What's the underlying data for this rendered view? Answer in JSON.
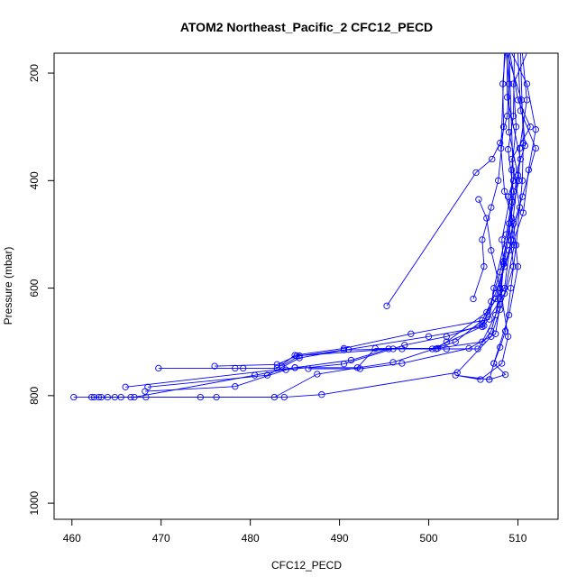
{
  "chart_data": {
    "type": "line",
    "title": "ATOM2 Northeast_Pacific_2 CFC12_PECD",
    "xlabel": "CFC12_PECD",
    "ylabel": "Pressure (mbar)",
    "xlim": [
      458,
      514.5
    ],
    "ylim": [
      1030,
      163
    ],
    "y_inverted": true,
    "x_ticks": [
      460,
      470,
      480,
      490,
      500,
      510
    ],
    "y_ticks": [
      200,
      400,
      600,
      800,
      1000
    ],
    "grid": false,
    "marker": "open-circle",
    "color": "#0000ff",
    "profiles": [
      [
        [
          460.2,
          803
        ],
        [
          462.5,
          803
        ],
        [
          464.8,
          803
        ],
        [
          466.6,
          803
        ],
        [
          468.3,
          803
        ],
        [
          476.2,
          803
        ],
        [
          483.8,
          803
        ],
        [
          488.0,
          798
        ],
        [
          503.2,
          757
        ],
        [
          507.0,
          690
        ],
        [
          508.0,
          640
        ],
        [
          509.5,
          560
        ],
        [
          509.0,
          480
        ],
        [
          510.1,
          400
        ],
        [
          510.2,
          340
        ],
        [
          511.0,
          250
        ],
        [
          510.5,
          163
        ]
      ],
      [
        [
          462.2,
          803
        ],
        [
          463.3,
          803
        ],
        [
          465.5,
          803
        ],
        [
          474.4,
          803
        ],
        [
          482.7,
          803
        ],
        [
          487.5,
          760
        ],
        [
          496.0,
          738
        ],
        [
          503.0,
          700
        ],
        [
          506.0,
          660
        ],
        [
          507.5,
          610
        ],
        [
          509.0,
          530
        ],
        [
          510.2,
          450
        ],
        [
          509.3,
          360
        ],
        [
          511.4,
          300
        ],
        [
          510.0,
          250
        ],
        [
          509.1,
          163
        ]
      ],
      [
        [
          463.0,
          803
        ],
        [
          464.0,
          803
        ],
        [
          467.0,
          803
        ],
        [
          480.5,
          762
        ],
        [
          485.0,
          748
        ],
        [
          492.0,
          748
        ],
        [
          494.0,
          712
        ],
        [
          501.0,
          712
        ],
        [
          506.0,
          700
        ],
        [
          507.5,
          650
        ],
        [
          508.0,
          600
        ],
        [
          508.8,
          520
        ],
        [
          510.5,
          430
        ],
        [
          512.0,
          340
        ],
        [
          510.3,
          270
        ],
        [
          510.0,
          163
        ]
      ],
      [
        [
          468.2,
          792
        ],
        [
          478.3,
          783
        ],
        [
          484.0,
          752
        ],
        [
          490.5,
          741
        ],
        [
          497.3,
          706
        ],
        [
          502.0,
          690
        ],
        [
          506.0,
          668
        ],
        [
          507.5,
          620
        ],
        [
          508.5,
          560
        ],
        [
          510.6,
          460
        ],
        [
          511.2,
          380
        ],
        [
          512.0,
          305
        ],
        [
          511.0,
          220
        ],
        [
          509.3,
          163
        ]
      ],
      [
        [
          466.0,
          784
        ],
        [
          485.0,
          748
        ],
        [
          491.3,
          734
        ],
        [
          495.5,
          713
        ],
        [
          500.4,
          713
        ],
        [
          506.2,
          670
        ],
        [
          508.5,
          610
        ],
        [
          509.6,
          520
        ],
        [
          508.9,
          430
        ],
        [
          510.8,
          335
        ],
        [
          510.4,
          250
        ],
        [
          508.8,
          163
        ]
      ],
      [
        [
          469.7,
          749
        ],
        [
          478.3,
          749
        ],
        [
          479.2,
          749
        ],
        [
          483.0,
          749
        ],
        [
          485.0,
          725
        ],
        [
          490.5,
          712
        ],
        [
          498.0,
          685
        ],
        [
          506.8,
          658
        ],
        [
          507.3,
          600
        ],
        [
          508.7,
          500
        ],
        [
          509.5,
          420
        ],
        [
          508.9,
          342
        ],
        [
          509.5,
          280
        ],
        [
          509.6,
          163
        ]
      ],
      [
        [
          468.5,
          784
        ],
        [
          481.9,
          762
        ],
        [
          485.5,
          730
        ],
        [
          491.0,
          714
        ],
        [
          500.0,
          690
        ],
        [
          506.0,
          672
        ],
        [
          507.0,
          625
        ],
        [
          508.0,
          570
        ],
        [
          509.3,
          470
        ],
        [
          509.3,
          380
        ],
        [
          509.8,
          300
        ],
        [
          509.5,
          220
        ],
        [
          511.0,
          163
        ]
      ],
      [
        [
          476.0,
          745
        ],
        [
          483.0,
          742
        ],
        [
          485.2,
          726
        ],
        [
          496.0,
          713
        ],
        [
          500.8,
          713
        ],
        [
          502.0,
          700
        ],
        [
          506.5,
          645
        ],
        [
          508.5,
          600
        ],
        [
          509.2,
          510
        ],
        [
          510.0,
          390
        ],
        [
          509.0,
          310
        ],
        [
          509.0,
          163
        ]
      ],
      [
        [
          483.5,
          745
        ],
        [
          485.5,
          726
        ],
        [
          490.5,
          715
        ],
        [
          497.0,
          713
        ],
        [
          502.0,
          713
        ],
        [
          505.5,
          713
        ],
        [
          507.0,
          680
        ],
        [
          508.0,
          620
        ],
        [
          508.4,
          550
        ],
        [
          509.4,
          440
        ],
        [
          510.3,
          360
        ],
        [
          508.8,
          245
        ],
        [
          508.8,
          163
        ]
      ],
      [
        [
          495.3,
          633
        ],
        [
          505.3,
          385
        ],
        [
          507.1,
          360
        ],
        [
          508.0,
          330
        ],
        [
          508.8,
          280
        ],
        [
          509.0,
          220
        ],
        [
          508.7,
          163
        ]
      ],
      [
        [
          505.6,
          435
        ],
        [
          506.5,
          470
        ],
        [
          507.0,
          530
        ],
        [
          508.0,
          600
        ],
        [
          508.9,
          690
        ],
        [
          508.2,
          740
        ],
        [
          505.8,
          770
        ],
        [
          503.0,
          762
        ],
        [
          506.8,
          770
        ],
        [
          508.6,
          761
        ],
        [
          507.3,
          740
        ],
        [
          509.0,
          650
        ],
        [
          510.0,
          560
        ],
        [
          509.5,
          480
        ],
        [
          508.5,
          420
        ],
        [
          508.1,
          340
        ],
        [
          508.5,
          163
        ]
      ],
      [
        [
          486.5,
          750
        ],
        [
          492.3,
          750
        ],
        [
          497.0,
          740
        ],
        [
          504.5,
          712
        ],
        [
          507.5,
          685
        ],
        [
          508.0,
          630
        ],
        [
          508.4,
          555
        ],
        [
          508.2,
          510
        ],
        [
          509.5,
          400
        ],
        [
          509.0,
          163
        ]
      ],
      [
        [
          505.0,
          620
        ],
        [
          506.2,
          560
        ],
        [
          506.0,
          510
        ],
        [
          507.0,
          450
        ],
        [
          507.8,
          400
        ],
        [
          508.4,
          300
        ],
        [
          508.3,
          220
        ],
        [
          508.6,
          163
        ]
      ],
      [
        [
          506.8,
          770
        ],
        [
          507.3,
          740
        ],
        [
          508.0,
          710
        ],
        [
          508.6,
          680
        ],
        [
          509.2,
          600
        ],
        [
          509.8,
          520
        ],
        [
          510.5,
          400
        ],
        [
          510.6,
          330
        ],
        [
          510.3,
          163
        ]
      ]
    ]
  }
}
